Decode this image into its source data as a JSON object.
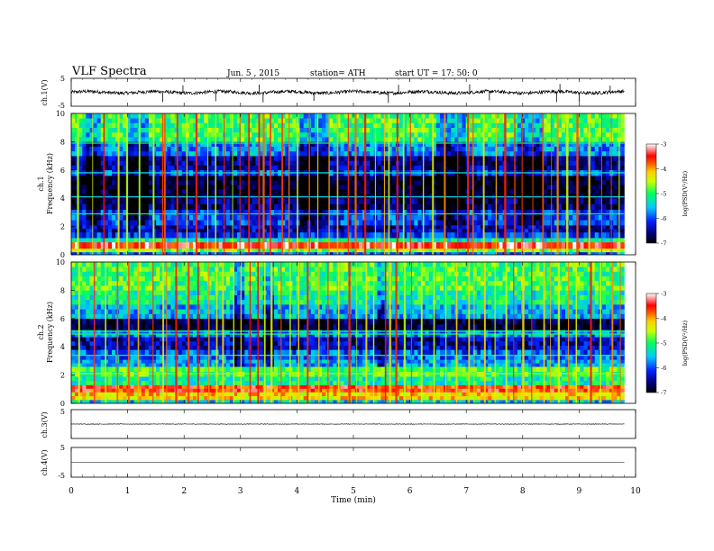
{
  "header": {
    "title": "VLF  Spectra",
    "date": "Jun. 5  , 2015",
    "station": "station= ATH",
    "start": "start  UT  =    17: 50: 0"
  },
  "chart_data": [
    {
      "type": "line",
      "panel": "ch1-waveform",
      "ylabel": "ch.1(V)",
      "ylim": [
        -5,
        5
      ],
      "yticks": [
        "5",
        "-5"
      ],
      "xlim": [
        0,
        10
      ],
      "data_end_min": 9.8,
      "baseline": 0,
      "noise_amplitude": 0.6,
      "spikes": [
        {
          "t": 1.62,
          "v": -3.5
        },
        {
          "t": 1.98,
          "v": 2.5
        },
        {
          "t": 2.56,
          "v": -3.2
        },
        {
          "t": 3.33,
          "v": 2.8
        },
        {
          "t": 3.4,
          "v": -3.6
        },
        {
          "t": 4.3,
          "v": -3.1
        },
        {
          "t": 5.62,
          "v": -3.8
        },
        {
          "t": 5.8,
          "v": 2.7
        },
        {
          "t": 7.06,
          "v": 2.9
        },
        {
          "t": 7.41,
          "v": -2.9
        },
        {
          "t": 8.6,
          "v": -3.5
        },
        {
          "t": 8.66,
          "v": 3.0
        },
        {
          "t": 9.0,
          "v": -3.6
        },
        {
          "t": 9.55,
          "v": 2.4
        }
      ]
    },
    {
      "type": "heatmap",
      "panel": "ch1-spectrogram",
      "ylabel": "Frequency  (kHz)",
      "ylabel_channel": "ch.1",
      "ylim": [
        0,
        10
      ],
      "yticks": [
        "0",
        "2",
        "4",
        "6",
        "8",
        "10"
      ],
      "xlim": [
        0,
        10
      ],
      "data_end_min": 9.8,
      "colorbar": {
        "label": "log(PSD(V²/Hz)",
        "range": [
          -7,
          -3
        ],
        "ticks": [
          "-3",
          "-4",
          "-5",
          "-6",
          "-7"
        ]
      },
      "bands": [
        {
          "f0": 0.0,
          "f1": 0.2,
          "level": -5.9
        },
        {
          "f0": 0.2,
          "f1": 0.45,
          "level": -4.6
        },
        {
          "f0": 0.45,
          "f1": 0.9,
          "level": -3.4
        },
        {
          "f0": 0.9,
          "f1": 1.2,
          "level": -5.2
        },
        {
          "f0": 1.2,
          "f1": 1.6,
          "level": -6.1
        },
        {
          "f0": 1.6,
          "f1": 2.1,
          "level": -6.4
        },
        {
          "f0": 2.1,
          "f1": 3.2,
          "level": -6.0
        },
        {
          "f0": 3.2,
          "f1": 4.0,
          "level": -6.6
        },
        {
          "f0": 4.0,
          "f1": 5.6,
          "level": -6.9
        },
        {
          "f0": 5.6,
          "f1": 6.0,
          "level": -6.0
        },
        {
          "f0": 6.0,
          "f1": 7.0,
          "level": -6.5
        },
        {
          "f0": 7.0,
          "f1": 8.0,
          "level": -5.7
        },
        {
          "f0": 8.0,
          "f1": 10.0,
          "level": -4.9
        }
      ],
      "lines": [
        {
          "f": 2.9,
          "level": -5.2
        },
        {
          "f": 4.1,
          "level": -5.5
        },
        {
          "f": 5.8,
          "level": -5.4
        },
        {
          "f": 7.9,
          "level": -5.0
        }
      ],
      "quiet_intervals": [
        {
          "t0": 0.25,
          "t1": 0.55
        },
        {
          "t0": 1.0,
          "t1": 1.35
        },
        {
          "t0": 4.05,
          "t1": 4.55
        },
        {
          "t0": 6.45,
          "t1": 7.0
        },
        {
          "t0": 7.9,
          "t1": 8.35
        }
      ],
      "sferics": [
        0.12,
        0.38,
        0.58,
        0.84,
        0.99,
        1.21,
        1.46,
        1.62,
        1.66,
        1.88,
        2.05,
        2.22,
        2.42,
        2.56,
        2.71,
        2.86,
        2.99,
        3.15,
        3.33,
        3.41,
        3.53,
        3.74,
        3.86,
        4.01,
        4.22,
        4.37,
        4.57,
        4.72,
        4.91,
        5.04,
        5.21,
        5.39,
        5.55,
        5.63,
        5.78,
        5.89,
        6.01,
        6.24,
        6.41,
        6.62,
        6.85,
        7.03,
        7.12,
        7.31,
        7.53,
        7.69,
        7.86,
        7.99,
        8.18,
        8.36,
        8.51,
        8.62,
        8.79,
        8.97,
        9.18,
        9.4,
        9.57,
        9.71
      ]
    },
    {
      "type": "heatmap",
      "panel": "ch2-spectrogram",
      "ylabel": "Frequency  (kHz)",
      "ylabel_channel": "ch.2",
      "ylim": [
        0,
        10
      ],
      "yticks": [
        "0",
        "2",
        "4",
        "6",
        "8",
        "10"
      ],
      "xlim": [
        0,
        10
      ],
      "data_end_min": 9.8,
      "colorbar": {
        "label": "log(PSD(V²/Hz)",
        "range": [
          -7,
          -3
        ],
        "ticks": [
          "-3",
          "-4",
          "-5",
          "-6",
          "-7"
        ]
      },
      "bands": [
        {
          "f0": 0.0,
          "f1": 0.25,
          "level": -5.5
        },
        {
          "f0": 0.25,
          "f1": 0.8,
          "level": -4.2
        },
        {
          "f0": 0.8,
          "f1": 1.3,
          "level": -3.6
        },
        {
          "f0": 1.3,
          "f1": 1.9,
          "level": -5.2
        },
        {
          "f0": 1.9,
          "f1": 2.6,
          "level": -4.9
        },
        {
          "f0": 2.6,
          "f1": 3.1,
          "level": -5.6
        },
        {
          "f0": 3.1,
          "f1": 3.8,
          "level": -5.9
        },
        {
          "f0": 3.8,
          "f1": 4.7,
          "level": -6.4
        },
        {
          "f0": 4.7,
          "f1": 5.2,
          "level": -5.8
        },
        {
          "f0": 5.2,
          "f1": 6.0,
          "level": -6.8
        },
        {
          "f0": 6.0,
          "f1": 7.0,
          "level": -5.6
        },
        {
          "f0": 7.0,
          "f1": 8.0,
          "level": -5.2
        },
        {
          "f0": 8.0,
          "f1": 10.0,
          "level": -4.9
        }
      ],
      "lines": [
        {
          "f": 2.1,
          "level": -4.6
        },
        {
          "f": 3.4,
          "level": -5.0
        },
        {
          "f": 4.9,
          "level": -5.1
        },
        {
          "f": 5.1,
          "level": -5.0
        }
      ],
      "quiet_intervals": [
        {
          "t0": 2.85,
          "t1": 3.05
        },
        {
          "t0": 3.4,
          "t1": 3.6
        },
        {
          "t0": 5.4,
          "t1": 5.58
        }
      ],
      "sferics": [
        0.14,
        0.41,
        0.61,
        0.82,
        1.02,
        1.19,
        1.45,
        1.63,
        1.69,
        1.86,
        2.08,
        2.25,
        2.44,
        2.58,
        2.69,
        2.88,
        3.01,
        3.17,
        3.31,
        3.43,
        3.55,
        3.72,
        3.88,
        4.03,
        4.19,
        4.39,
        4.55,
        4.74,
        4.93,
        5.06,
        5.23,
        5.36,
        5.57,
        5.65,
        5.76,
        5.91,
        6.03,
        6.21,
        6.43,
        6.64,
        6.83,
        7.05,
        7.14,
        7.33,
        7.51,
        7.71,
        7.84,
        8.01,
        8.16,
        8.38,
        8.49,
        8.64,
        8.81,
        8.95,
        9.21,
        9.38,
        9.59,
        9.73
      ]
    },
    {
      "type": "line",
      "panel": "ch3-waveform",
      "ylabel": "ch.3(V)",
      "ylim": [
        -5,
        5
      ],
      "yticks": [
        "5"
      ],
      "xlim": [
        0,
        10
      ],
      "data_end_min": 9.8,
      "baseline": 0,
      "noise_amplitude": 0.1
    },
    {
      "type": "line",
      "panel": "ch4-waveform",
      "ylabel": "ch.4(V)",
      "ylim": [
        -5,
        5
      ],
      "yticks": [
        "5",
        "-5"
      ],
      "xlim": [
        0,
        10
      ],
      "data_end_min": 9.8,
      "baseline": 0,
      "noise_amplitude": 0.0,
      "xlabel": "Time  (min)",
      "xticks": [
        "0",
        "1",
        "2",
        "3",
        "4",
        "5",
        "6",
        "7",
        "8",
        "9",
        "10"
      ]
    }
  ]
}
